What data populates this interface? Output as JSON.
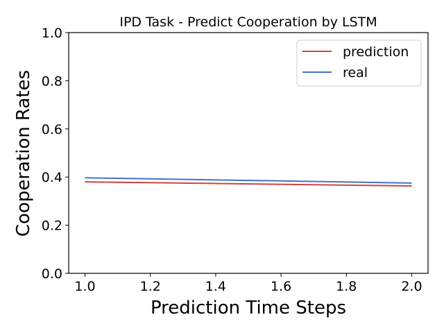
{
  "chart_data": {
    "type": "line",
    "title": "IPD Task - Predict Cooperation by LSTM",
    "xlabel": "Prediction Time Steps",
    "ylabel": "Cooperation Rates",
    "x": [
      1.0,
      2.0
    ],
    "xlim": [
      0.95,
      2.05
    ],
    "ylim": [
      0.0,
      1.0
    ],
    "xticks": [
      "1.0",
      "1.2",
      "1.4",
      "1.6",
      "1.8",
      "2.0"
    ],
    "xtick_values": [
      1.0,
      1.2,
      1.4,
      1.6,
      1.8,
      2.0
    ],
    "yticks": [
      "0.0",
      "0.2",
      "0.4",
      "0.6",
      "0.8",
      "1.0"
    ],
    "ytick_values": [
      0.0,
      0.2,
      0.4,
      0.6,
      0.8,
      1.0
    ],
    "grid": false,
    "legend_position": "top-right",
    "series": [
      {
        "name": "prediction",
        "values": [
          0.38,
          0.363
        ],
        "color": "#cc4444"
      },
      {
        "name": "real",
        "values": [
          0.397,
          0.375
        ],
        "color": "#4472c4"
      }
    ]
  }
}
